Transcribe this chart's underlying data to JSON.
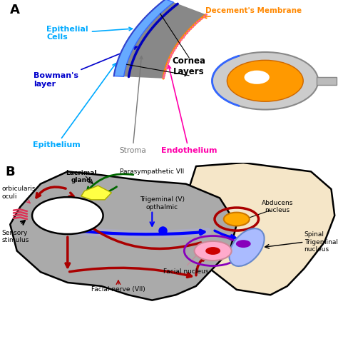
{
  "panel_A_label": "A",
  "panel_B_label": "B",
  "labels_A": {
    "Decements_Membrane": "Decement's Membrane",
    "Epithelial_Cells": "Epithelial\nCells",
    "Cornea_Layers": "Cornea\nLayers",
    "Bowmans_layer": "Bowman's\nlayer",
    "Epithelium": "Epithelium",
    "Stroma": "Stroma",
    "Endothelium": "Endothelium"
  },
  "labels_B": {
    "orbicularis_oculi": "orbicularis\noculi",
    "Lacrimal_gland": "Lacrimal\ngland",
    "Parasympathetic": "Parasympathetic VII",
    "Trigeminal": "Trigeminal (V)\nopthalmic",
    "Sensory_stimulus": "Sensory\nstimulus",
    "Facial_nerve": "Facial nerve (VII)",
    "Facial_nucleus": "Facial nucleus",
    "Abducens_nucleus": "Abducens\nnucleus",
    "Spinal_Trigeminal": "Spinal\nTrigeminal\nnucleus"
  },
  "colors": {
    "background": "#ffffff",
    "gray_region": "#aaaaaa",
    "brainstem_bg": "#f5e6c8",
    "blue_nerve": "#0000ff",
    "red_nerve": "#aa0000",
    "green_nerve": "#006600",
    "orange_label": "#ff8800",
    "cyan_label": "#00aaff",
    "blue_label": "#0000cc",
    "magenta_label": "#ff00aa",
    "cornea_gray": "#888888",
    "cornea_blue": "#5599ff",
    "cornea_orange": "#ff8800",
    "eye_orange": "#ff8800",
    "eye_gray": "#bbbbbb",
    "lacrimal_yellow": "#ffff44",
    "abducens_orange": "#ffaa00",
    "facial_pink": "#ffaacc",
    "facial_red": "#cc0000",
    "trigeminal_blue": "#aabbff",
    "trigeminal_purple": "#8800bb"
  }
}
